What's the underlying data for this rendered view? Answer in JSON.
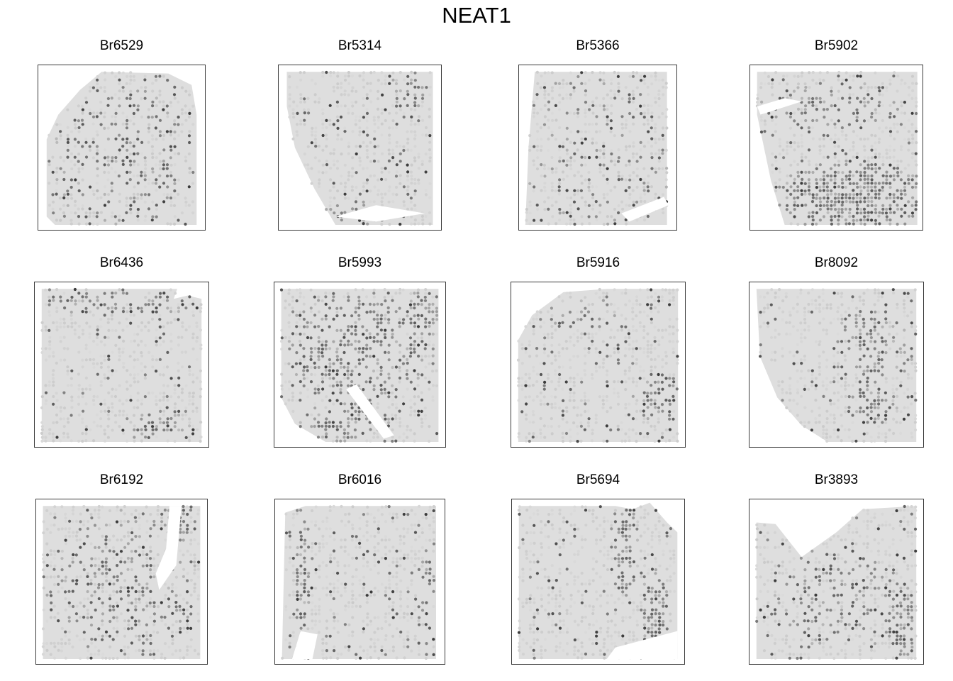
{
  "chart_data": {
    "type": "scatter",
    "title": "NEAT1",
    "colormap": {
      "low": "#dedede",
      "high": "#3a3a3a"
    },
    "grid": false,
    "legend": "none",
    "panels": [
      {
        "title": "Br6529"
      },
      {
        "title": "Br5314"
      },
      {
        "title": "Br5366"
      },
      {
        "title": "Br5902"
      },
      {
        "title": "Br6436"
      },
      {
        "title": "Br5993"
      },
      {
        "title": "Br5916"
      },
      {
        "title": "Br8092"
      },
      {
        "title": "Br6192"
      },
      {
        "title": "Br6016"
      },
      {
        "title": "Br5694"
      },
      {
        "title": "Br3893"
      }
    ]
  }
}
